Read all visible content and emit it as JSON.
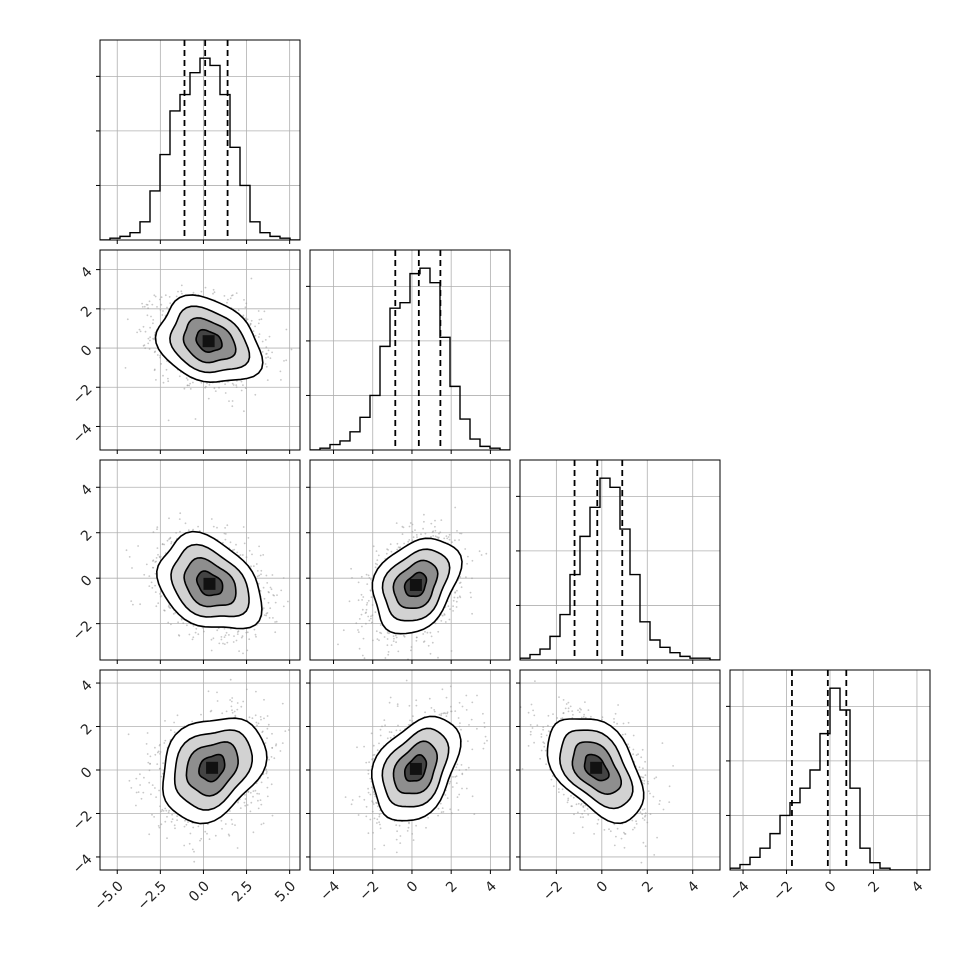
{
  "chart_data": {
    "type": "corner",
    "dimensions": 4,
    "grid": true,
    "quantiles": [
      0.16,
      0.5,
      0.84
    ],
    "colors": {
      "line": "#000000",
      "grid": "#b0b0b0",
      "scatter": "#9a9a9a",
      "density_max": "#111111",
      "density_min": "#ffffff"
    },
    "axes": [
      {
        "index": 0,
        "range": [
          -6.0,
          5.6
        ],
        "ticks": [
          -5.0,
          -2.5,
          0.0,
          2.5,
          5.0
        ],
        "tick_labels": [
          "−5.0",
          "−2.5",
          "0.0",
          "2.5",
          "5.0"
        ],
        "mean": 0.1,
        "sd": 1.5
      },
      {
        "index": 1,
        "range": [
          -5.2,
          5.0
        ],
        "ticks": [
          -4,
          -2,
          0,
          2,
          4
        ],
        "tick_labels": [
          "−4",
          "−2",
          "0",
          "2",
          "4"
        ],
        "mean": 0.35,
        "sd": 1.1
      },
      {
        "index": 2,
        "range": [
          -3.6,
          5.2
        ],
        "ticks": [
          -2,
          0,
          2,
          4
        ],
        "tick_labels": [
          "−2",
          "0",
          "2",
          "4"
        ],
        "mean": -0.2,
        "sd": 1.05
      },
      {
        "index": 3,
        "range": [
          -4.6,
          4.6
        ],
        "ticks": [
          -4,
          -2,
          0,
          2,
          4
        ],
        "tick_labels": [
          "−4",
          "−2",
          "0",
          "2",
          "4"
        ],
        "mean": -0.3,
        "sd": 1.2
      }
    ],
    "histograms": [
      {
        "dim": 0,
        "quantile_lines": [
          -1.1,
          0.1,
          1.4
        ],
        "peak_count": 1.0,
        "bin_edges": [
          -6.0,
          -5.42,
          -4.84,
          -4.26,
          -3.68,
          -3.1,
          -2.52,
          -1.94,
          -1.36,
          -0.78,
          -0.2,
          0.38,
          0.96,
          1.54,
          2.12,
          2.7,
          3.28,
          3.86,
          4.44,
          5.02,
          5.6
        ],
        "counts": [
          0.0,
          0.01,
          0.02,
          0.04,
          0.1,
          0.27,
          0.47,
          0.71,
          0.8,
          0.92,
          1.0,
          0.96,
          0.8,
          0.51,
          0.3,
          0.1,
          0.04,
          0.02,
          0.01,
          0.0
        ]
      },
      {
        "dim": 1,
        "quantile_lines": [
          -0.85,
          0.35,
          1.45
        ],
        "peak_count": 1.0,
        "bin_edges": [
          -5.2,
          -4.69,
          -4.18,
          -3.67,
          -3.16,
          -2.65,
          -2.14,
          -1.63,
          -1.12,
          -0.61,
          -0.1,
          0.41,
          0.92,
          1.43,
          1.94,
          2.45,
          2.96,
          3.47,
          3.98,
          4.49,
          5.0
        ],
        "counts": [
          0.0,
          0.01,
          0.03,
          0.05,
          0.1,
          0.18,
          0.3,
          0.57,
          0.78,
          0.81,
          0.97,
          1.0,
          0.92,
          0.62,
          0.35,
          0.17,
          0.06,
          0.02,
          0.01,
          0.0
        ]
      },
      {
        "dim": 2,
        "quantile_lines": [
          -1.2,
          -0.2,
          0.9
        ],
        "peak_count": 1.0,
        "bin_edges": [
          -3.6,
          -3.16,
          -2.72,
          -2.28,
          -1.84,
          -1.4,
          -0.96,
          -0.52,
          -0.08,
          0.36,
          0.8,
          1.24,
          1.68,
          2.12,
          2.56,
          3.0,
          3.44,
          3.88,
          4.32,
          4.76,
          5.2
        ],
        "counts": [
          0.01,
          0.03,
          0.06,
          0.13,
          0.25,
          0.47,
          0.68,
          0.84,
          1.0,
          0.95,
          0.72,
          0.47,
          0.21,
          0.11,
          0.07,
          0.04,
          0.02,
          0.01,
          0.01,
          0.0
        ]
      },
      {
        "dim": 3,
        "quantile_lines": [
          -1.75,
          -0.1,
          0.75
        ],
        "peak_count": 1.0,
        "bin_edges": [
          -4.6,
          -4.14,
          -3.68,
          -3.22,
          -2.76,
          -2.3,
          -1.84,
          -1.38,
          -0.92,
          -0.46,
          0.0,
          0.46,
          0.92,
          1.38,
          1.84,
          2.3,
          2.76,
          3.22,
          3.68,
          4.14,
          4.6
        ],
        "counts": [
          0.01,
          0.03,
          0.07,
          0.12,
          0.2,
          0.3,
          0.37,
          0.45,
          0.55,
          0.75,
          1.0,
          0.88,
          0.45,
          0.12,
          0.04,
          0.01,
          0.0,
          0.0,
          0.0,
          0.0
        ]
      }
    ],
    "pairs": [
      {
        "row": 1,
        "col": 0,
        "centre": [
          0.3,
          0.35
        ],
        "sd": [
          1.5,
          1.1
        ],
        "rho": -0.25
      },
      {
        "row": 2,
        "col": 0,
        "centre": [
          0.35,
          -0.25
        ],
        "sd": [
          1.5,
          1.05
        ],
        "rho": -0.3
      },
      {
        "row": 2,
        "col": 1,
        "centre": [
          0.2,
          -0.3
        ],
        "sd": [
          1.1,
          1.05
        ],
        "rho": 0.3
      },
      {
        "row": 3,
        "col": 0,
        "centre": [
          0.5,
          0.1
        ],
        "sd": [
          1.5,
          1.2
        ],
        "rho": 0.25
      },
      {
        "row": 3,
        "col": 1,
        "centre": [
          0.2,
          0.05
        ],
        "sd": [
          1.1,
          1.2
        ],
        "rho": 0.35
      },
      {
        "row": 3,
        "col": 2,
        "centre": [
          -0.25,
          0.1
        ],
        "sd": [
          1.05,
          1.2
        ],
        "rho": -0.45
      }
    ],
    "contour_levels_sigma": [
      0.5,
      1.0,
      1.5,
      2.0
    ]
  }
}
